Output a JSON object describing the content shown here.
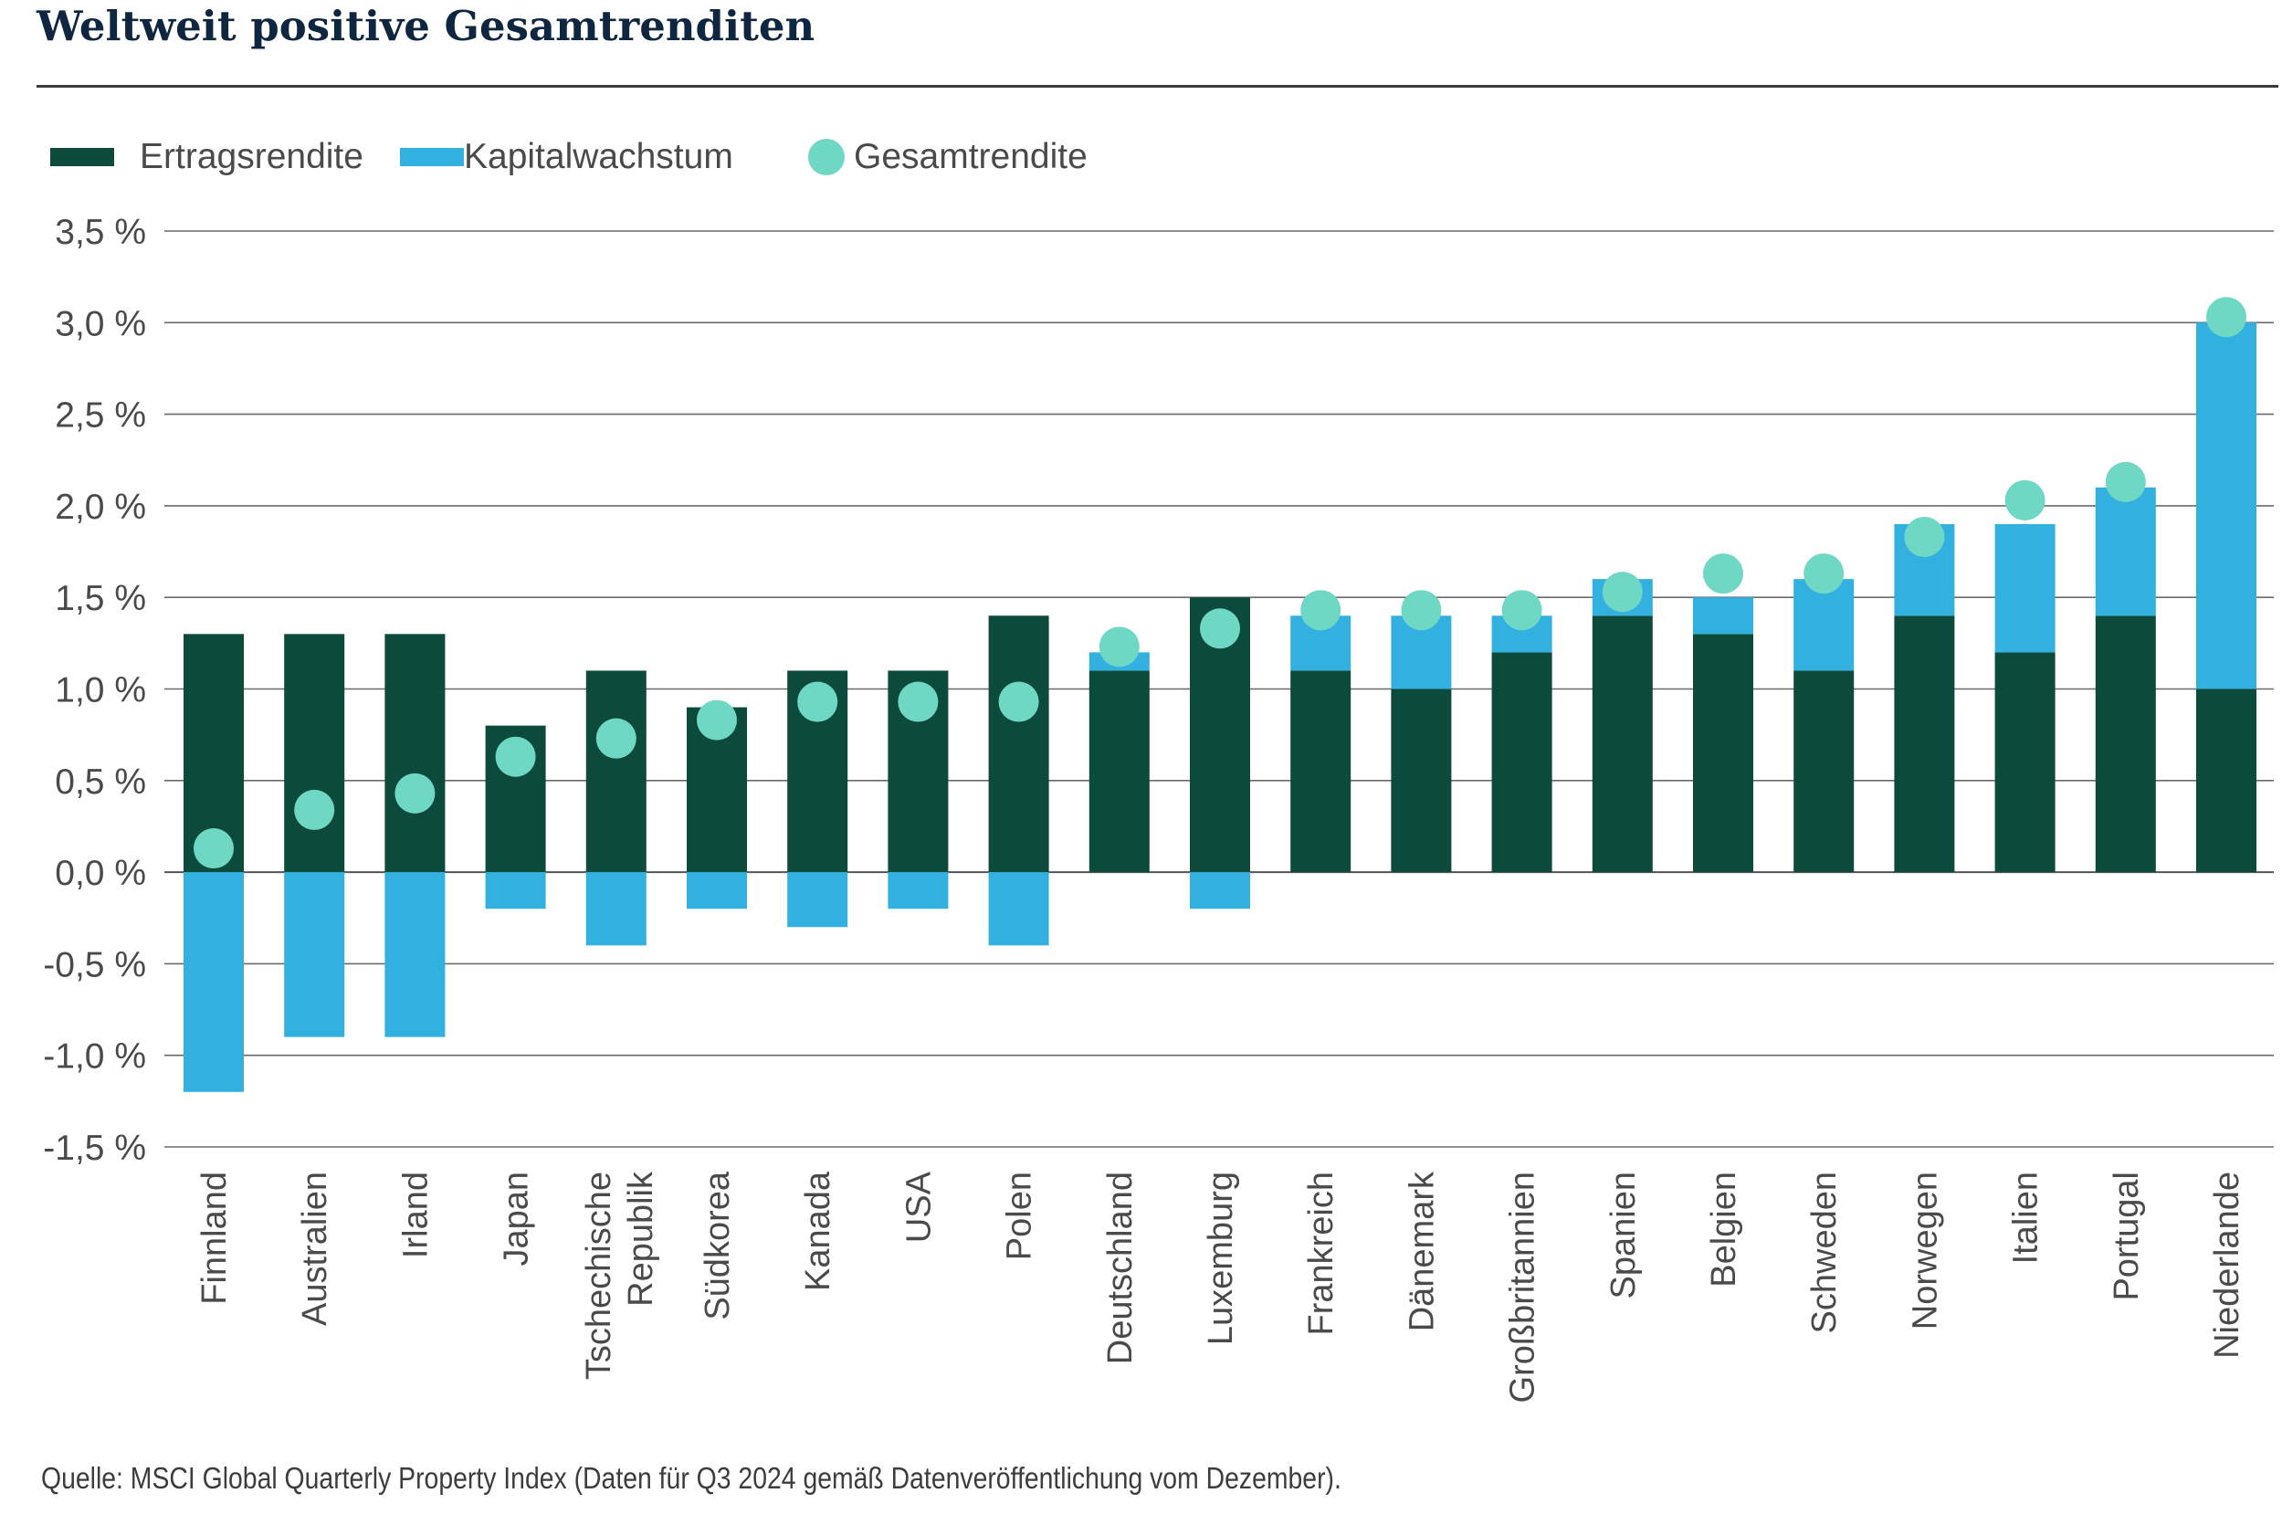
{
  "title": "Weltweit positive Gesamtrenditen",
  "legend": [
    {
      "label": "Ertragsrendite",
      "kind": "bar",
      "color": "#0c4a3c"
    },
    {
      "label": "Kapitalwachstum",
      "kind": "bar",
      "color": "#32b1e1"
    },
    {
      "label": "Gesamtrendite",
      "kind": "dot",
      "color": "#6fd8c5"
    }
  ],
  "source": "Quelle: MSCI Global Quarterly Property Index (Daten für Q3 2024 gemäß Datenveröffentlichung vom Dezember).",
  "chart_data": {
    "type": "bar",
    "stacked": true,
    "title": "Weltweit positive Gesamtrenditen",
    "xlabel": "",
    "ylabel": "",
    "ylim": [
      -1.5,
      3.5
    ],
    "yticks": [
      3.5,
      3.0,
      2.5,
      2.0,
      1.5,
      1.0,
      0.5,
      0.0,
      -0.5,
      -1.0,
      -1.5
    ],
    "ytick_labels": [
      "3,5 %",
      "3,0 %",
      "2,5 %",
      "2,0 %",
      "1,5 %",
      "1,0 %",
      "0,5 %",
      "0,0 %",
      "-0,5 %",
      "-1,0 %",
      "-1,5 %"
    ],
    "grid": true,
    "legend_position": "top-left",
    "categories": [
      [
        "Finnland"
      ],
      [
        "Australien"
      ],
      [
        "Irland"
      ],
      [
        "Japan"
      ],
      [
        "Tschechische",
        "Republik"
      ],
      [
        "Südkorea"
      ],
      [
        "Kanada"
      ],
      [
        "USA"
      ],
      [
        "Polen"
      ],
      [
        "Deutschland"
      ],
      [
        "Luxemburg"
      ],
      [
        "Frankreich"
      ],
      [
        "Dänemark"
      ],
      [
        "Großbritannien"
      ],
      [
        "Spanien"
      ],
      [
        "Belgien"
      ],
      [
        "Schweden"
      ],
      [
        "Norwegen"
      ],
      [
        "Italien"
      ],
      [
        "Portugal"
      ],
      [
        "Niederlande"
      ]
    ],
    "series": [
      {
        "name": "Ertragsrendite",
        "type": "bar",
        "color": "#0c4a3c",
        "values": [
          1.3,
          1.3,
          1.3,
          0.8,
          1.1,
          0.9,
          1.1,
          1.1,
          1.4,
          1.1,
          1.5,
          1.1,
          1.0,
          1.2,
          1.4,
          1.3,
          1.1,
          1.4,
          1.2,
          1.4,
          1.0
        ]
      },
      {
        "name": "Kapitalwachstum",
        "type": "bar",
        "color": "#32b1e1",
        "values": [
          -1.2,
          -0.9,
          -0.9,
          -0.2,
          -0.4,
          -0.2,
          -0.3,
          -0.2,
          -0.4,
          0.1,
          -0.2,
          0.3,
          0.4,
          0.2,
          0.2,
          0.2,
          0.5,
          0.5,
          0.7,
          0.7,
          2.0
        ]
      },
      {
        "name": "Gesamtrendite",
        "type": "scatter",
        "color": "#6fd8c5",
        "values": [
          0.13,
          0.34,
          0.43,
          0.63,
          0.73,
          0.83,
          0.93,
          0.93,
          0.93,
          1.23,
          1.33,
          1.43,
          1.43,
          1.43,
          1.53,
          1.63,
          1.63,
          1.83,
          2.03,
          2.13,
          3.03
        ]
      }
    ]
  }
}
